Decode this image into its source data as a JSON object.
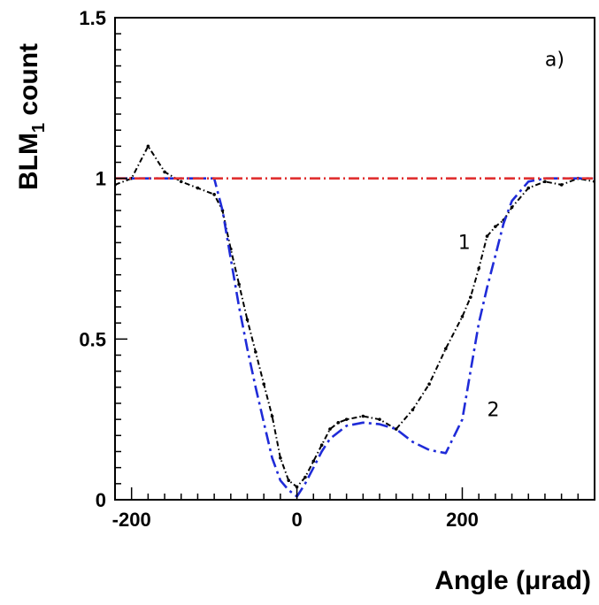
{
  "chart_data": {
    "type": "line",
    "xlabel": "Angle  (μrad)",
    "ylabel": "BLM",
    "ylabel_sub": "1",
    "ylabel_tail": " count",
    "xlim": [
      -220,
      360
    ],
    "ylim": [
      0,
      1.5
    ],
    "x_ticks": [
      -200,
      0,
      200
    ],
    "x_tick_labels": [
      "-200",
      "0",
      "200"
    ],
    "y_ticks": [
      0,
      0.5,
      1,
      1.5
    ],
    "y_tick_labels": [
      "0",
      "0.5",
      "1",
      "1.5"
    ],
    "grid": false,
    "annotations": [
      {
        "text": "a)",
        "x": 300,
        "y": 1.35
      },
      {
        "text": "1",
        "x": 195,
        "y": 0.78
      },
      {
        "text": "2",
        "x": 230,
        "y": 0.26
      }
    ],
    "colors": {
      "series1": "#000000",
      "series2": "#1f2bd8",
      "reference": "#e03030"
    },
    "series": [
      {
        "label": "1",
        "style": "dash-dot-black",
        "x": [
          -220,
          -200,
          -180,
          -160,
          -140,
          -120,
          -100,
          -90,
          -80,
          -70,
          -60,
          -50,
          -40,
          -30,
          -20,
          -10,
          0,
          10,
          20,
          30,
          40,
          50,
          60,
          80,
          100,
          120,
          140,
          160,
          180,
          200,
          210,
          220,
          230,
          240,
          250,
          260,
          280,
          300,
          320,
          340,
          360
        ],
        "y": [
          0.98,
          1.0,
          1.1,
          1.02,
          0.99,
          0.97,
          0.95,
          0.9,
          0.78,
          0.67,
          0.56,
          0.46,
          0.36,
          0.26,
          0.13,
          0.06,
          0.04,
          0.07,
          0.12,
          0.17,
          0.22,
          0.24,
          0.25,
          0.26,
          0.25,
          0.22,
          0.28,
          0.36,
          0.47,
          0.57,
          0.63,
          0.72,
          0.82,
          0.85,
          0.87,
          0.91,
          0.97,
          0.99,
          0.98,
          1.0,
          0.99
        ]
      },
      {
        "label": "2",
        "style": "dash-dot-blue",
        "x": [
          -220,
          -200,
          -150,
          -100,
          -90,
          -80,
          -70,
          -60,
          -50,
          -40,
          -30,
          -20,
          -10,
          0,
          10,
          20,
          30,
          40,
          60,
          80,
          100,
          120,
          140,
          160,
          180,
          200,
          210,
          220,
          230,
          240,
          250,
          260,
          280,
          300,
          330,
          360
        ],
        "y": [
          1.0,
          1.0,
          1.0,
          1.0,
          0.9,
          0.75,
          0.6,
          0.47,
          0.35,
          0.24,
          0.13,
          0.06,
          0.03,
          0.01,
          0.05,
          0.1,
          0.15,
          0.19,
          0.23,
          0.24,
          0.235,
          0.22,
          0.18,
          0.155,
          0.145,
          0.25,
          0.4,
          0.55,
          0.66,
          0.76,
          0.86,
          0.93,
          0.99,
          1.0,
          1.0,
          1.0
        ]
      },
      {
        "label": "",
        "style": "dash-dot-red",
        "x": [
          -220,
          360
        ],
        "y": [
          1.0,
          1.0
        ]
      }
    ]
  }
}
